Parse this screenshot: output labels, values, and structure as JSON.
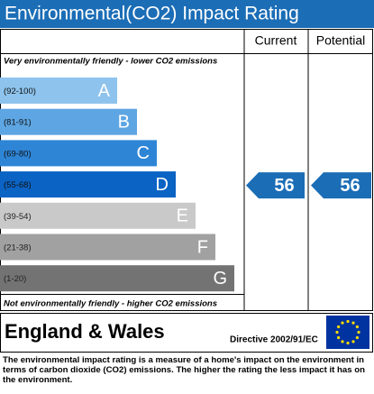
{
  "chart_data": {
    "type": "epc",
    "title": "Environmental(CO2) Impact Rating",
    "columns": [
      "Current",
      "Potential"
    ],
    "top_note": "Very environmentally friendly - lower CO2 emissions",
    "bottom_note": "Not environmentally friendly - higher CO2 emissions",
    "bands": [
      {
        "range": "(92-100)",
        "letter": "A",
        "color": "#8dc3ec"
      },
      {
        "range": "(81-91)",
        "letter": "B",
        "color": "#5da6e3"
      },
      {
        "range": "(69-80)",
        "letter": "C",
        "color": "#2e85d6"
      },
      {
        "range": "(55-68)",
        "letter": "D",
        "color": "#0b63c4"
      },
      {
        "range": "(39-54)",
        "letter": "E",
        "color": "#c9c9c9"
      },
      {
        "range": "(21-38)",
        "letter": "F",
        "color": "#a1a1a1"
      },
      {
        "range": "(1-20)",
        "letter": "G",
        "color": "#737373"
      }
    ],
    "current": 56,
    "potential": 56,
    "arrow_color": "#1b6db6",
    "region": "England & Wales",
    "directive": "Directive 2002/91/EC",
    "footer": "The environmental impact rating is a measure of a home's impact on the environment in terms of carbon dioxide (CO2) emissions. The higher the rating the less impact it has on the environment."
  }
}
